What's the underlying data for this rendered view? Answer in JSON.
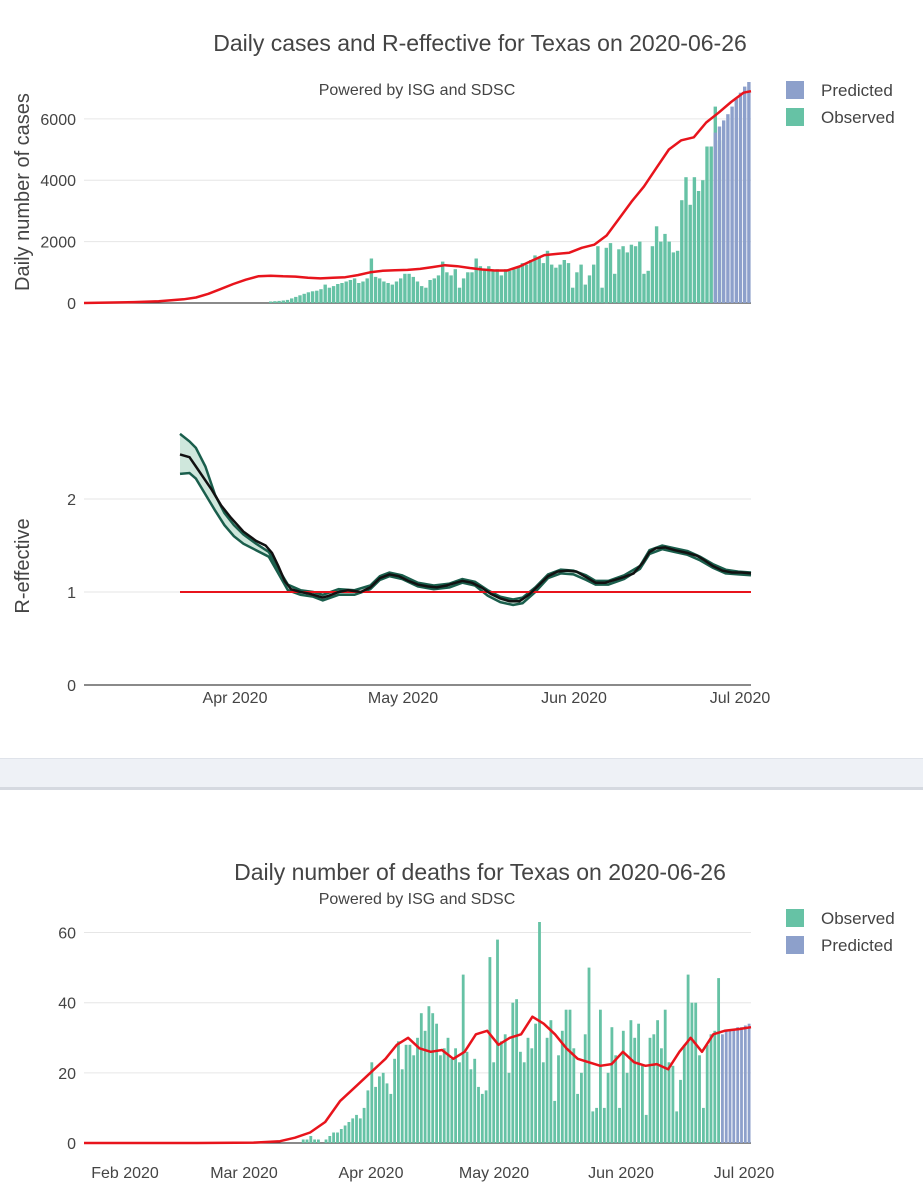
{
  "chart_data": [
    {
      "type": "bar+line",
      "title": "Daily cases and R-effective for Texas on 2020-06-26",
      "subtitle": "Powered by ISG and SDSC",
      "ylabel": "Daily number of cases",
      "ylim": [
        0,
        7200
      ],
      "yticks": [
        0,
        2000,
        4000,
        6000
      ],
      "legend": [
        "Predicted",
        "Observed"
      ],
      "colors": {
        "observed": "#66c2a5",
        "predicted": "#8da0cb",
        "fit": "#e8141c"
      },
      "observed_start_day": 44,
      "observed": [
        50,
        60,
        70,
        80,
        100,
        150,
        200,
        250,
        300,
        350,
        380,
        400,
        450,
        600,
        500,
        550,
        620,
        650,
        700,
        750,
        800,
        650,
        700,
        800,
        1450,
        850,
        800,
        700,
        650,
        600,
        700,
        800,
        950,
        950,
        850,
        700,
        550,
        500,
        750,
        800,
        900,
        1350,
        1000,
        900,
        1100,
        500,
        800,
        1000,
        1000,
        1450,
        1200,
        1100,
        1200,
        1050,
        1100,
        900,
        1100,
        1050,
        1100,
        1200,
        1300,
        1250,
        1400,
        1550,
        1500,
        1300,
        1700,
        1250,
        1150,
        1250,
        1400,
        1300,
        500,
        1000,
        1250,
        600,
        900,
        1250,
        1850,
        500,
        1800,
        1950,
        950,
        1750,
        1850,
        1650,
        1900,
        1850,
        2000,
        950,
        1050,
        1850,
        2500,
        2000,
        2250,
        2000,
        1650,
        1700,
        3350,
        4100,
        3200,
        4100,
        3650,
        4000,
        5100,
        5100,
        6400,
        5300
      ],
      "predicted_start_day": 150,
      "predicted": [
        5550,
        5750,
        5950,
        6150,
        6400,
        6650,
        6850,
        7050,
        7200
      ],
      "fit": [
        [
          0,
          0
        ],
        [
          20,
          30
        ],
        [
          30,
          60
        ],
        [
          40,
          120
        ],
        [
          45,
          180
        ],
        [
          50,
          300
        ],
        [
          55,
          460
        ],
        [
          60,
          620
        ],
        [
          65,
          760
        ],
        [
          70,
          870
        ],
        [
          75,
          890
        ],
        [
          80,
          870
        ],
        [
          85,
          860
        ],
        [
          90,
          820
        ],
        [
          95,
          800
        ],
        [
          100,
          820
        ],
        [
          105,
          840
        ],
        [
          110,
          910
        ],
        [
          115,
          1000
        ],
        [
          120,
          1050
        ],
        [
          125,
          1070
        ],
        [
          130,
          1080
        ],
        [
          135,
          1110
        ],
        [
          140,
          1170
        ],
        [
          145,
          1230
        ],
        [
          150,
          1200
        ],
        [
          155,
          1140
        ],
        [
          160,
          1090
        ],
        [
          165,
          1060
        ],
        [
          170,
          1060
        ],
        [
          175,
          1190
        ],
        [
          180,
          1380
        ],
        [
          185,
          1560
        ],
        [
          190,
          1600
        ],
        [
          195,
          1640
        ],
        [
          200,
          1800
        ],
        [
          205,
          1900
        ],
        [
          210,
          2200
        ],
        [
          215,
          2750
        ],
        [
          220,
          3300
        ],
        [
          225,
          3800
        ],
        [
          230,
          4400
        ],
        [
          235,
          5000
        ],
        [
          240,
          5300
        ],
        [
          245,
          5400
        ],
        [
          250,
          5880
        ],
        [
          255,
          6200
        ],
        [
          260,
          6550
        ],
        [
          265,
          6850
        ],
        [
          268,
          6900
        ]
      ],
      "r_effective": {
        "ylabel": "R-effective",
        "ylim": [
          0,
          2.85
        ],
        "yticks": [
          0,
          1,
          2
        ],
        "xticks": [
          "Apr 2020",
          "May 2020",
          "Jun 2020",
          "Jul 2020"
        ],
        "reference_line": 1,
        "mean": [
          [
            0,
            2.48
          ],
          [
            3,
            2.45
          ],
          [
            5,
            2.35
          ],
          [
            10,
            2.1
          ],
          [
            13,
            1.93
          ],
          [
            16,
            1.8
          ],
          [
            20,
            1.65
          ],
          [
            24,
            1.55
          ],
          [
            27,
            1.5
          ],
          [
            29,
            1.42
          ],
          [
            31,
            1.28
          ],
          [
            33,
            1.12
          ],
          [
            35,
            1.03
          ],
          [
            38,
            1.0
          ],
          [
            41,
            0.98
          ],
          [
            45,
            0.94
          ],
          [
            47,
            0.96
          ],
          [
            50,
            1.0
          ],
          [
            53,
            1.02
          ],
          [
            57,
            1.0
          ],
          [
            60,
            1.05
          ],
          [
            63,
            1.15
          ],
          [
            66,
            1.19
          ],
          [
            69,
            1.17
          ],
          [
            72,
            1.12
          ],
          [
            75,
            1.08
          ],
          [
            78,
            1.06
          ],
          [
            81,
            1.05
          ],
          [
            84,
            1.07
          ],
          [
            87,
            1.1
          ],
          [
            89,
            1.12
          ],
          [
            92,
            1.1
          ],
          [
            95,
            1.05
          ],
          [
            98,
            0.98
          ],
          [
            101,
            0.93
          ],
          [
            104,
            0.9
          ],
          [
            107,
            0.9
          ],
          [
            110,
            0.97
          ],
          [
            113,
            1.07
          ],
          [
            116,
            1.17
          ],
          [
            119,
            1.22
          ],
          [
            122,
            1.23
          ],
          [
            125,
            1.22
          ],
          [
            128,
            1.16
          ],
          [
            131,
            1.1
          ],
          [
            134,
            1.1
          ],
          [
            137,
            1.13
          ],
          [
            140,
            1.16
          ],
          [
            143,
            1.2
          ],
          [
            146,
            1.32
          ],
          [
            148,
            1.43
          ],
          [
            150,
            1.47
          ],
          [
            153,
            1.48
          ],
          [
            156,
            1.45
          ],
          [
            160,
            1.42
          ],
          [
            163,
            1.39
          ],
          [
            165,
            1.35
          ],
          [
            168,
            1.28
          ],
          [
            171,
            1.23
          ],
          [
            174,
            1.21
          ],
          [
            177,
            1.21
          ],
          [
            180,
            1.2
          ]
        ],
        "upper": [
          [
            0,
            2.7
          ],
          [
            3,
            2.62
          ],
          [
            5,
            2.55
          ],
          [
            8,
            2.35
          ],
          [
            11,
            2.05
          ],
          [
            14,
            1.85
          ],
          [
            17,
            1.72
          ],
          [
            20,
            1.62
          ],
          [
            24,
            1.52
          ],
          [
            28,
            1.43
          ],
          [
            31,
            1.25
          ],
          [
            34,
            1.08
          ],
          [
            38,
            1.02
          ],
          [
            42,
            1.0
          ],
          [
            45,
            0.97
          ],
          [
            50,
            1.03
          ],
          [
            55,
            1.02
          ],
          [
            60,
            1.07
          ],
          [
            63,
            1.17
          ],
          [
            66,
            1.21
          ],
          [
            70,
            1.18
          ],
          [
            75,
            1.1
          ],
          [
            80,
            1.07
          ],
          [
            85,
            1.09
          ],
          [
            89,
            1.14
          ],
          [
            93,
            1.11
          ],
          [
            97,
            1.02
          ],
          [
            101,
            0.95
          ],
          [
            105,
            0.92
          ],
          [
            108,
            0.94
          ],
          [
            112,
            1.05
          ],
          [
            116,
            1.19
          ],
          [
            120,
            1.24
          ],
          [
            124,
            1.23
          ],
          [
            128,
            1.18
          ],
          [
            131,
            1.12
          ],
          [
            135,
            1.12
          ],
          [
            140,
            1.18
          ],
          [
            145,
            1.28
          ],
          [
            148,
            1.45
          ],
          [
            152,
            1.5
          ],
          [
            156,
            1.47
          ],
          [
            160,
            1.44
          ],
          [
            164,
            1.38
          ],
          [
            168,
            1.3
          ],
          [
            172,
            1.24
          ],
          [
            176,
            1.22
          ],
          [
            180,
            1.21
          ]
        ],
        "lower": [
          [
            0,
            2.27
          ],
          [
            3,
            2.28
          ],
          [
            5,
            2.22
          ],
          [
            8,
            2.05
          ],
          [
            11,
            1.88
          ],
          [
            14,
            1.72
          ],
          [
            17,
            1.6
          ],
          [
            20,
            1.52
          ],
          [
            24,
            1.45
          ],
          [
            28,
            1.38
          ],
          [
            31,
            1.2
          ],
          [
            34,
            1.02
          ],
          [
            38,
            0.97
          ],
          [
            42,
            0.95
          ],
          [
            45,
            0.91
          ],
          [
            50,
            0.97
          ],
          [
            55,
            0.97
          ],
          [
            60,
            1.03
          ],
          [
            63,
            1.13
          ],
          [
            66,
            1.17
          ],
          [
            70,
            1.14
          ],
          [
            75,
            1.06
          ],
          [
            80,
            1.03
          ],
          [
            85,
            1.05
          ],
          [
            89,
            1.1
          ],
          [
            93,
            1.07
          ],
          [
            97,
            0.96
          ],
          [
            101,
            0.89
          ],
          [
            105,
            0.86
          ],
          [
            108,
            0.88
          ],
          [
            112,
            1.0
          ],
          [
            116,
            1.15
          ],
          [
            120,
            1.2
          ],
          [
            124,
            1.19
          ],
          [
            128,
            1.13
          ],
          [
            131,
            1.08
          ],
          [
            135,
            1.08
          ],
          [
            140,
            1.14
          ],
          [
            145,
            1.25
          ],
          [
            148,
            1.41
          ],
          [
            152,
            1.46
          ],
          [
            156,
            1.43
          ],
          [
            160,
            1.4
          ],
          [
            164,
            1.34
          ],
          [
            168,
            1.26
          ],
          [
            172,
            1.2
          ],
          [
            176,
            1.19
          ],
          [
            180,
            1.18
          ]
        ]
      }
    },
    {
      "type": "bar+line",
      "title": "Daily number of deaths for Texas on 2020-06-26",
      "subtitle": "Powered by ISG and SDSC",
      "ylim": [
        0,
        65
      ],
      "yticks": [
        0,
        20,
        40,
        60
      ],
      "xticks": [
        "Feb 2020",
        "Mar 2020",
        "Apr 2020",
        "May 2020",
        "Jun 2020",
        "Jul 2020"
      ],
      "legend": [
        "Observed",
        "Predicted"
      ],
      "colors": {
        "observed": "#66c2a5",
        "predicted": "#8da0cb",
        "fit": "#e8141c"
      },
      "observed_start_day": 57,
      "observed": [
        1,
        1,
        2,
        1,
        1,
        0,
        1,
        2,
        3,
        3,
        4,
        5,
        6,
        7,
        8,
        7,
        10,
        15,
        23,
        16,
        19,
        20,
        17,
        14,
        24,
        29,
        21,
        28,
        28,
        25,
        30,
        37,
        32,
        39,
        37,
        34,
        25,
        27,
        30,
        24,
        27,
        23,
        48,
        26,
        21,
        24,
        16,
        14,
        15,
        53,
        23,
        58,
        29,
        31,
        20,
        40,
        41,
        26,
        23,
        30,
        27,
        34,
        63,
        23,
        30,
        35,
        12,
        25,
        32,
        38,
        38,
        27,
        14,
        20,
        31,
        50,
        9,
        10,
        38,
        10,
        20,
        33,
        25,
        10,
        32,
        20,
        35,
        30,
        34,
        22,
        8,
        30,
        31,
        35,
        27,
        38,
        23,
        22,
        9,
        18,
        28,
        48,
        40,
        40,
        25,
        10,
        28,
        31,
        32,
        47
      ],
      "predicted_start_day": 167,
      "predicted": [
        31,
        32,
        32,
        32.5,
        33,
        33,
        33.5,
        34
      ],
      "fit": [
        [
          0,
          0
        ],
        [
          30,
          0
        ],
        [
          45,
          0.1
        ],
        [
          52,
          0.5
        ],
        [
          56,
          1.5
        ],
        [
          60,
          3
        ],
        [
          64,
          6
        ],
        [
          68,
          12
        ],
        [
          72,
          16
        ],
        [
          76,
          20
        ],
        [
          80,
          24
        ],
        [
          83,
          28
        ],
        [
          86,
          30
        ],
        [
          89,
          27
        ],
        [
          92,
          26
        ],
        [
          95,
          26.5
        ],
        [
          98,
          24
        ],
        [
          101,
          26
        ],
        [
          104,
          31
        ],
        [
          107,
          32
        ],
        [
          110,
          28
        ],
        [
          113,
          30
        ],
        [
          116,
          31
        ],
        [
          119,
          36
        ],
        [
          122,
          34
        ],
        [
          125,
          31
        ],
        [
          128,
          27
        ],
        [
          131,
          24
        ],
        [
          134,
          23
        ],
        [
          137,
          22
        ],
        [
          140,
          22.5
        ],
        [
          143,
          26
        ],
        [
          146,
          23
        ],
        [
          149,
          22
        ],
        [
          152,
          22.5
        ],
        [
          155,
          21
        ],
        [
          158,
          26
        ],
        [
          161,
          30
        ],
        [
          164,
          26
        ],
        [
          167,
          31
        ],
        [
          170,
          32
        ],
        [
          174,
          32.5
        ],
        [
          177,
          33
        ]
      ]
    }
  ]
}
